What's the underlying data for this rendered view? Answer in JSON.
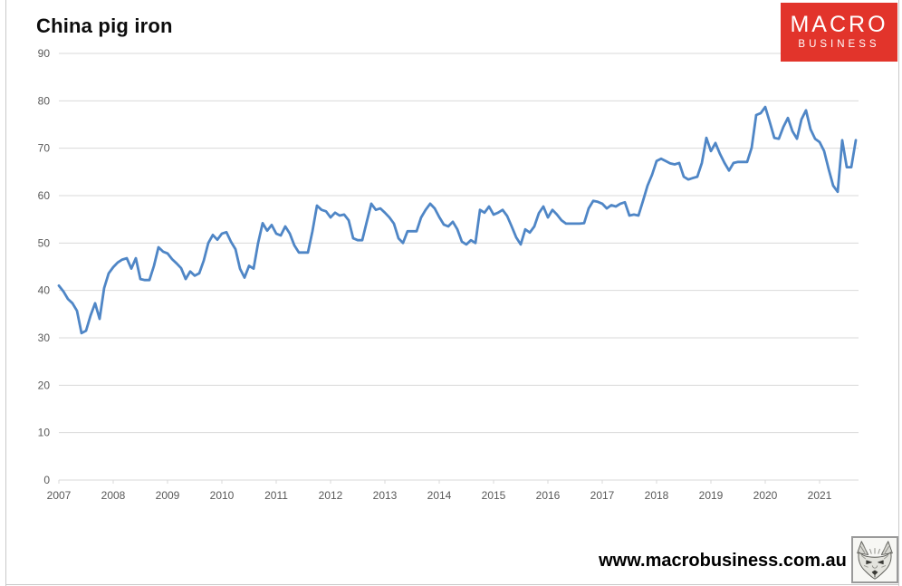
{
  "page": {
    "title": "China pig iron",
    "footer_url": "www.macrobusiness.com.au"
  },
  "logo": {
    "line1": "MACRO",
    "line2": "BUSINESS",
    "bg_color": "#e2342b",
    "text_color": "#ffffff"
  },
  "icons": {
    "footer_icon": "wolf-sketch-logo"
  },
  "chart_data": {
    "type": "line",
    "title": "China pig iron",
    "series_name": "China pig iron",
    "frequency": "monthly",
    "x_start": "2007-01",
    "x_end": "2021-09",
    "x_tick_labels": [
      "2007",
      "2008",
      "2009",
      "2010",
      "2011",
      "2012",
      "2013",
      "2014",
      "2015",
      "2016",
      "2017",
      "2018",
      "2019",
      "2020",
      "2021"
    ],
    "y_ticks": [
      0,
      10,
      20,
      30,
      40,
      50,
      60,
      70,
      80,
      90
    ],
    "ylim": [
      0,
      90
    ],
    "grid": true,
    "legend": "none",
    "line_color": "#4f86c6",
    "grid_color": "#d9d9d9",
    "axis_label_color": "#595959",
    "values": [
      41.0,
      39.8,
      38.2,
      37.3,
      35.7,
      31.0,
      31.5,
      34.7,
      37.3,
      34.0,
      40.5,
      43.6,
      44.9,
      45.9,
      46.5,
      46.8,
      44.6,
      46.8,
      42.4,
      42.2,
      42.2,
      45.2,
      49.1,
      48.2,
      47.8,
      46.6,
      45.7,
      44.7,
      42.4,
      44.0,
      43.1,
      43.6,
      46.3,
      50.0,
      51.7,
      50.7,
      52.0,
      52.3,
      50.3,
      48.7,
      44.6,
      42.7,
      45.2,
      44.6,
      50.0,
      54.2,
      52.6,
      53.8,
      52.0,
      51.6,
      53.5,
      52.0,
      49.5,
      48.0,
      48.0,
      48.0,
      52.5,
      57.9,
      57.0,
      56.7,
      55.4,
      56.4,
      55.8,
      56.0,
      54.8,
      51.0,
      50.6,
      50.6,
      54.5,
      58.3,
      57.0,
      57.3,
      56.4,
      55.4,
      54.1,
      51.0,
      50.0,
      52.5,
      52.5,
      52.5,
      55.4,
      57.0,
      58.3,
      57.3,
      55.5,
      53.9,
      53.5,
      54.5,
      52.9,
      50.3,
      49.7,
      50.6,
      50.0,
      57.0,
      56.4,
      57.7,
      56.0,
      56.4,
      57.0,
      55.7,
      53.5,
      51.2,
      49.7,
      52.9,
      52.2,
      53.5,
      56.3,
      57.7,
      55.4,
      57.0,
      56.0,
      54.8,
      54.1,
      54.1,
      54.1,
      54.1,
      54.2,
      57.3,
      58.9,
      58.7,
      58.3,
      57.3,
      58.0,
      57.7,
      58.3,
      58.6,
      55.8,
      56.0,
      55.8,
      58.9,
      62.1,
      64.4,
      67.3,
      67.8,
      67.3,
      66.8,
      66.6,
      66.9,
      64.0,
      63.4,
      63.7,
      64.0,
      66.9,
      72.2,
      69.4,
      71.1,
      68.8,
      66.9,
      65.3,
      66.9,
      67.1,
      67.1,
      67.1,
      70.1,
      77.0,
      77.4,
      78.7,
      75.5,
      72.2,
      72.0,
      74.5,
      76.4,
      73.6,
      72.0,
      76.1,
      78.0,
      74.0,
      72.0,
      71.3,
      69.4,
      65.6,
      62.1,
      60.8,
      71.7,
      66.0,
      66.0,
      71.7
    ]
  }
}
